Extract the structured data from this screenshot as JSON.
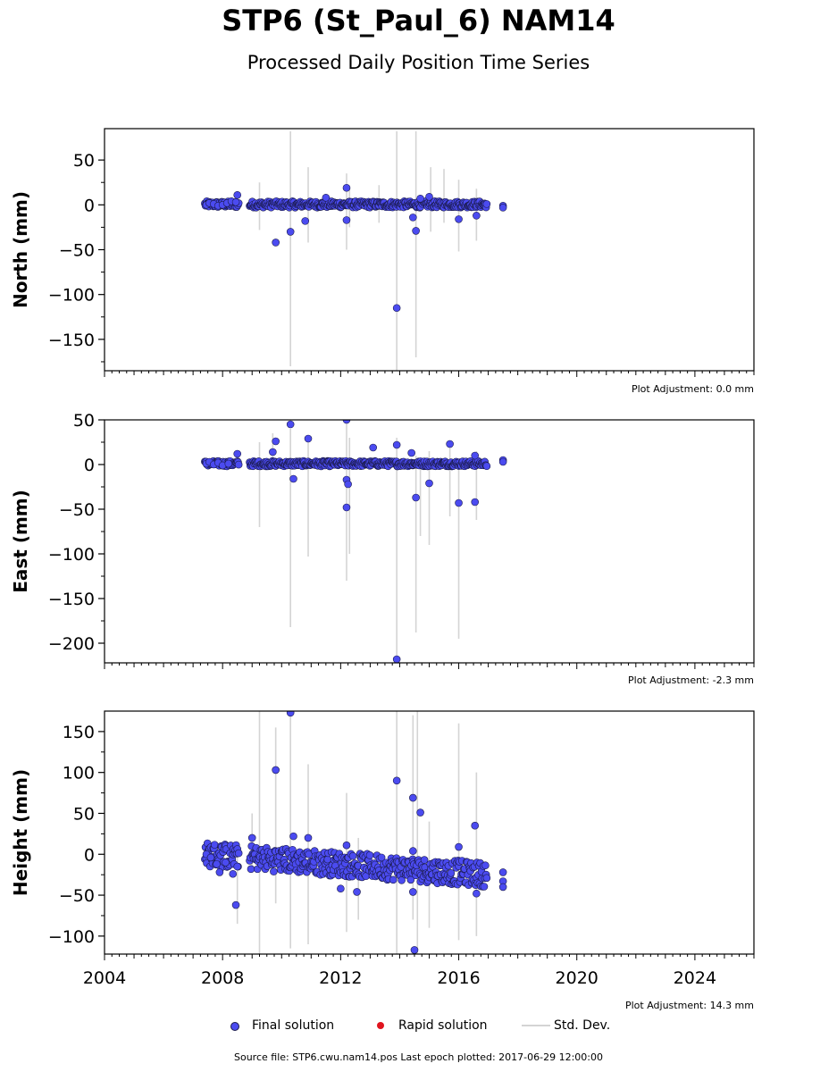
{
  "title": "STP6 (St_Paul_6) NAM14",
  "subtitle": "Processed Daily Position Time Series",
  "colors": {
    "final": "#4b4bf0",
    "final_edge": "#1a1a4a",
    "rapid": "#e0141e",
    "stddev": "#d4d4d4"
  },
  "legend": {
    "final_label": "Final solution",
    "rapid_label": "Rapid solution",
    "std_label": "Std. Dev."
  },
  "source_text": "Source file: STP6.cwu.nam14.pos  Last epoch plotted: 2017-06-29 12:00:00",
  "chart_data": [
    {
      "type": "scatter",
      "ylabel": "North (mm)",
      "adjustment": "Plot Adjustment: 0.0 mm",
      "xlim": [
        2004,
        2026
      ],
      "ylim": [
        -185,
        85
      ],
      "yticks": [
        50,
        0,
        -50,
        -100,
        -150
      ],
      "ytick_labels": [
        "50",
        "0",
        "−50",
        "−100",
        "−150"
      ],
      "base_range": [
        -3,
        4
      ],
      "series": [
        {
          "name": "Final solution",
          "points": [
            {
              "x": 2007.45,
              "y": 0
            },
            {
              "x": 2007.55,
              "y": 2
            },
            {
              "x": 2007.7,
              "y": 1
            },
            {
              "x": 2007.85,
              "y": -1
            },
            {
              "x": 2008.0,
              "y": 0
            },
            {
              "x": 2008.15,
              "y": 2
            },
            {
              "x": 2008.3,
              "y": 4
            },
            {
              "x": 2008.45,
              "y": 3
            },
            {
              "x": 2008.5,
              "y": 11
            },
            {
              "x": 2009.8,
              "y": -42
            },
            {
              "x": 2010.3,
              "y": -30
            },
            {
              "x": 2010.8,
              "y": -18
            },
            {
              "x": 2011.5,
              "y": 8
            },
            {
              "x": 2012.2,
              "y": 19
            },
            {
              "x": 2012.2,
              "y": -17
            },
            {
              "x": 2013.9,
              "y": -115
            },
            {
              "x": 2014.45,
              "y": -14
            },
            {
              "x": 2014.55,
              "y": -29
            },
            {
              "x": 2014.7,
              "y": 7
            },
            {
              "x": 2015.0,
              "y": 9
            },
            {
              "x": 2016.0,
              "y": -16
            },
            {
              "x": 2016.6,
              "y": -12
            },
            {
              "x": 2017.5,
              "y": -1
            },
            {
              "x": 2017.5,
              "y": -3
            }
          ]
        }
      ],
      "std_dev": [
        {
          "x": 2009.25,
          "y": [
            -28,
            25
          ]
        },
        {
          "x": 2010.3,
          "y": [
            -180,
            82
          ]
        },
        {
          "x": 2010.9,
          "y": [
            -42,
            42
          ]
        },
        {
          "x": 2012.2,
          "y": [
            -50,
            35
          ]
        },
        {
          "x": 2012.3,
          "y": [
            -25,
            20
          ]
        },
        {
          "x": 2013.3,
          "y": [
            -20,
            22
          ]
        },
        {
          "x": 2013.9,
          "y": [
            -185,
            82
          ]
        },
        {
          "x": 2014.55,
          "y": [
            -170,
            82
          ]
        },
        {
          "x": 2015.05,
          "y": [
            -30,
            42
          ]
        },
        {
          "x": 2015.5,
          "y": [
            -20,
            40
          ]
        },
        {
          "x": 2016.0,
          "y": [
            -52,
            28
          ]
        },
        {
          "x": 2016.6,
          "y": [
            -40,
            18
          ]
        }
      ]
    },
    {
      "type": "scatter",
      "ylabel": "East (mm)",
      "adjustment": "Plot Adjustment: -2.3 mm",
      "xlim": [
        2004,
        2026
      ],
      "ylim": [
        -222,
        50
      ],
      "yticks": [
        50,
        0,
        -50,
        -100,
        -150,
        -200
      ],
      "ytick_labels": [
        "50",
        "0",
        "−50",
        "−100",
        "−150",
        "−200"
      ],
      "base_range": [
        -2,
        4
      ],
      "series": [
        {
          "name": "Final solution",
          "points": [
            {
              "x": 2007.45,
              "y": 1
            },
            {
              "x": 2007.55,
              "y": 3
            },
            {
              "x": 2007.7,
              "y": 0
            },
            {
              "x": 2007.85,
              "y": 2
            },
            {
              "x": 2008.0,
              "y": -1
            },
            {
              "x": 2008.2,
              "y": 1
            },
            {
              "x": 2008.5,
              "y": 12
            },
            {
              "x": 2009.7,
              "y": 14
            },
            {
              "x": 2009.8,
              "y": 26
            },
            {
              "x": 2010.3,
              "y": 45
            },
            {
              "x": 2010.4,
              "y": -16
            },
            {
              "x": 2010.9,
              "y": 29
            },
            {
              "x": 2012.2,
              "y": 50
            },
            {
              "x": 2012.2,
              "y": -17
            },
            {
              "x": 2012.25,
              "y": -22
            },
            {
              "x": 2012.2,
              "y": -48
            },
            {
              "x": 2013.1,
              "y": 19
            },
            {
              "x": 2013.9,
              "y": 22
            },
            {
              "x": 2013.9,
              "y": -218
            },
            {
              "x": 2014.4,
              "y": 13
            },
            {
              "x": 2014.55,
              "y": -37
            },
            {
              "x": 2015.0,
              "y": -21
            },
            {
              "x": 2015.7,
              "y": 23
            },
            {
              "x": 2016.0,
              "y": -43
            },
            {
              "x": 2016.55,
              "y": 10
            },
            {
              "x": 2016.55,
              "y": -42
            },
            {
              "x": 2017.5,
              "y": 5
            },
            {
              "x": 2017.5,
              "y": 3
            }
          ]
        }
      ],
      "std_dev": [
        {
          "x": 2009.25,
          "y": [
            -70,
            25
          ]
        },
        {
          "x": 2009.7,
          "y": [
            -5,
            35
          ]
        },
        {
          "x": 2010.3,
          "y": [
            -182,
            40
          ]
        },
        {
          "x": 2010.9,
          "y": [
            -103,
            30
          ]
        },
        {
          "x": 2012.2,
          "y": [
            -130,
            50
          ]
        },
        {
          "x": 2012.3,
          "y": [
            -100,
            30
          ]
        },
        {
          "x": 2013.9,
          "y": [
            -222,
            30
          ]
        },
        {
          "x": 2014.55,
          "y": [
            -188,
            10
          ]
        },
        {
          "x": 2014.7,
          "y": [
            -80,
            5
          ]
        },
        {
          "x": 2015.0,
          "y": [
            -90,
            15
          ]
        },
        {
          "x": 2015.7,
          "y": [
            -58,
            22
          ]
        },
        {
          "x": 2016.0,
          "y": [
            -195,
            5
          ]
        },
        {
          "x": 2016.6,
          "y": [
            -62,
            15
          ]
        }
      ]
    },
    {
      "type": "scatter",
      "ylabel": "Height (mm)",
      "adjustment": "Plot Adjustment: 14.3 mm",
      "xlim": [
        2004,
        2026
      ],
      "ylim": [
        -122,
        175
      ],
      "yticks": [
        150,
        100,
        50,
        0,
        -50,
        -100
      ],
      "ytick_labels": [
        "150",
        "100",
        "50",
        "0",
        "−50",
        "−100"
      ],
      "base_range": [
        -38,
        10
      ],
      "series": [
        {
          "name": "Final solution",
          "points": [
            {
              "x": 2007.45,
              "y": 0
            },
            {
              "x": 2007.6,
              "y": -4
            },
            {
              "x": 2007.8,
              "y": -12
            },
            {
              "x": 2007.9,
              "y": -22
            },
            {
              "x": 2008.1,
              "y": -10
            },
            {
              "x": 2008.35,
              "y": -24
            },
            {
              "x": 2008.45,
              "y": -62
            },
            {
              "x": 2008.5,
              "y": -15
            },
            {
              "x": 2009.0,
              "y": 20
            },
            {
              "x": 2009.8,
              "y": 103
            },
            {
              "x": 2010.3,
              "y": 173
            },
            {
              "x": 2010.4,
              "y": 22
            },
            {
              "x": 2010.9,
              "y": 20
            },
            {
              "x": 2012.0,
              "y": -42
            },
            {
              "x": 2012.2,
              "y": 11
            },
            {
              "x": 2012.55,
              "y": -46
            },
            {
              "x": 2013.9,
              "y": 90
            },
            {
              "x": 2014.45,
              "y": 69
            },
            {
              "x": 2014.45,
              "y": 4
            },
            {
              "x": 2014.45,
              "y": -46
            },
            {
              "x": 2014.5,
              "y": -117
            },
            {
              "x": 2014.7,
              "y": 51
            },
            {
              "x": 2016.0,
              "y": 9
            },
            {
              "x": 2016.55,
              "y": 35
            },
            {
              "x": 2016.6,
              "y": -48
            },
            {
              "x": 2017.5,
              "y": -22
            },
            {
              "x": 2017.5,
              "y": -33
            },
            {
              "x": 2017.5,
              "y": -40
            }
          ]
        }
      ],
      "std_dev": [
        {
          "x": 2008.5,
          "y": [
            -85,
            10
          ]
        },
        {
          "x": 2009.0,
          "y": [
            -20,
            50
          ]
        },
        {
          "x": 2009.25,
          "y": [
            -122,
            175
          ]
        },
        {
          "x": 2009.8,
          "y": [
            -60,
            155
          ]
        },
        {
          "x": 2010.3,
          "y": [
            -115,
            175
          ]
        },
        {
          "x": 2010.9,
          "y": [
            -110,
            110
          ]
        },
        {
          "x": 2012.2,
          "y": [
            -95,
            75
          ]
        },
        {
          "x": 2012.6,
          "y": [
            -80,
            20
          ]
        },
        {
          "x": 2013.9,
          "y": [
            -122,
            175
          ]
        },
        {
          "x": 2014.45,
          "y": [
            -80,
            170
          ]
        },
        {
          "x": 2014.6,
          "y": [
            -122,
            175
          ]
        },
        {
          "x": 2015.0,
          "y": [
            -90,
            40
          ]
        },
        {
          "x": 2016.0,
          "y": [
            -105,
            160
          ]
        },
        {
          "x": 2016.6,
          "y": [
            -100,
            100
          ]
        }
      ]
    }
  ],
  "xticks": [
    2004,
    2008,
    2012,
    2016,
    2020,
    2024
  ],
  "xtick_labels": [
    "2004",
    "2008",
    "2012",
    "2016",
    "2020",
    "2024"
  ]
}
